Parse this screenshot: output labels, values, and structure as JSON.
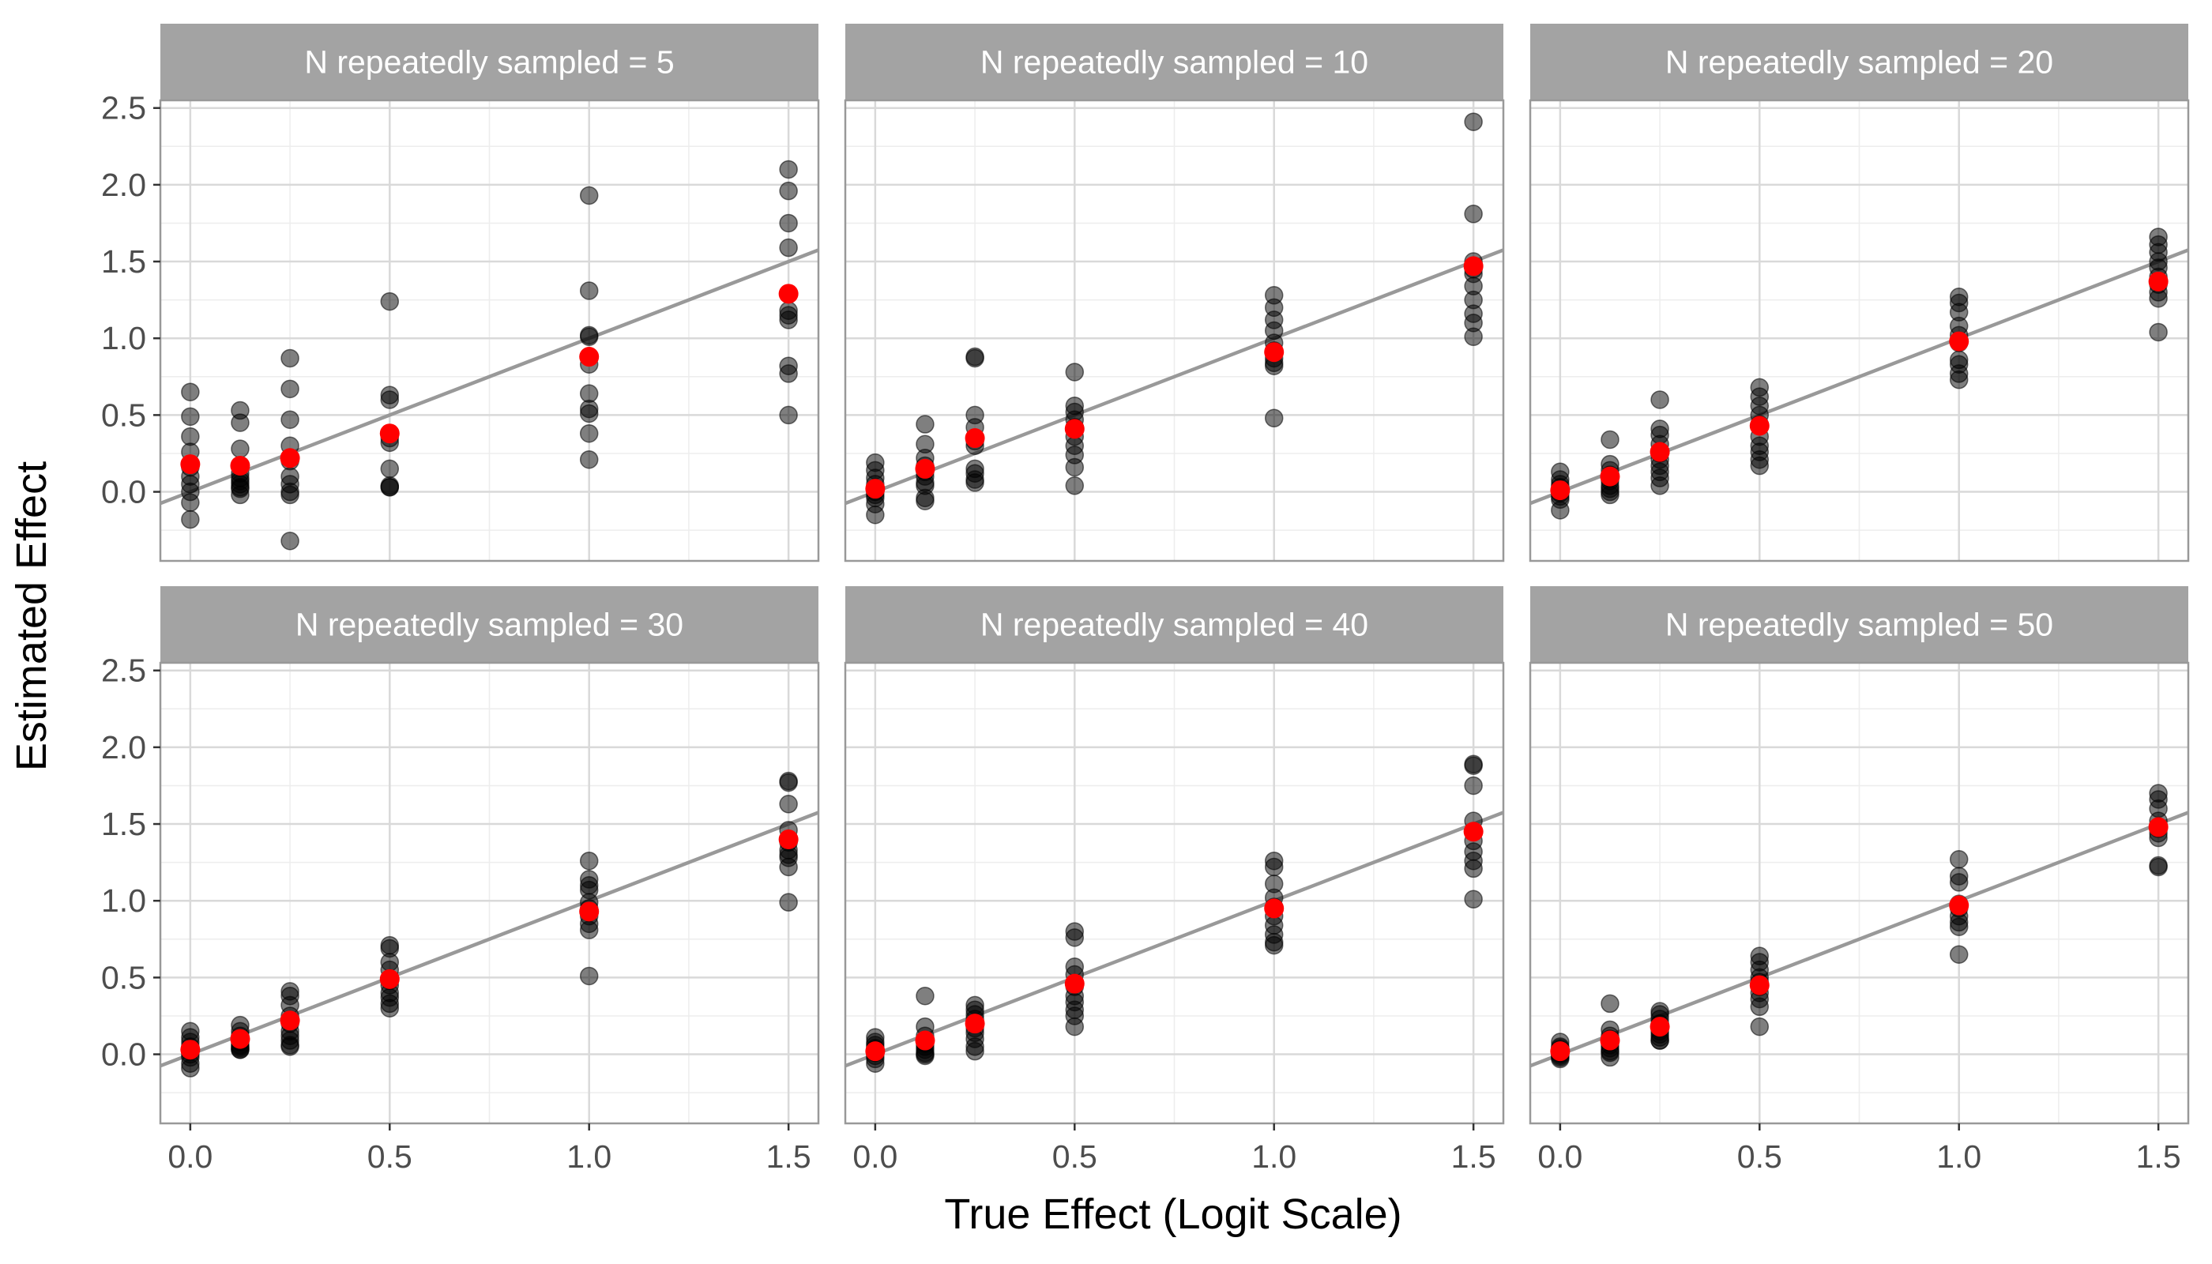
{
  "figure": {
    "xlabel": "True Effect (Logit Scale)",
    "ylabel": "Estimated Effect"
  },
  "colors": {
    "strip_fill": "#a3a3a3",
    "panel_border": "#999999",
    "grid_major": "#d9d9d9",
    "grid_minor": "#ededed",
    "point": "#000000",
    "mean_point": "#ff0000",
    "reference_line": "#999999"
  },
  "chart_data": {
    "type": "scatter",
    "facet_label_prefix": "N repeatedly sampled = ",
    "xlim": [
      -0.075,
      1.575
    ],
    "ylim": [
      -0.45,
      2.55
    ],
    "x_ticks": [
      0.0,
      0.5,
      1.0,
      1.5
    ],
    "x_tick_labels": [
      "0.0",
      "0.5",
      "1.0",
      "1.5"
    ],
    "y_ticks": [
      0.0,
      0.5,
      1.0,
      1.5,
      2.0,
      2.5
    ],
    "y_tick_labels": [
      "0.0",
      "0.5",
      "1.0",
      "1.5",
      "2.0",
      "2.5"
    ],
    "grid": true,
    "reference_line": {
      "slope": 1,
      "intercept": 0
    },
    "x_levels": [
      0.0,
      0.125,
      0.25,
      0.5,
      1.0,
      1.5
    ],
    "panels": [
      {
        "label": "5",
        "estimates": [
          [
            0.65,
            0.49,
            0.36,
            0.26,
            0.16,
            0.1,
            0.05,
            0.0,
            -0.07,
            -0.18
          ],
          [
            0.53,
            0.45,
            0.28,
            0.12,
            0.09,
            0.07,
            0.05,
            0.03,
            0.02,
            -0.02
          ],
          [
            0.87,
            0.67,
            0.47,
            0.3,
            0.2,
            0.1,
            0.05,
            0.0,
            -0.02,
            -0.32
          ],
          [
            1.24,
            0.63,
            0.6,
            0.38,
            0.35,
            0.32,
            0.15,
            0.04,
            0.03,
            0.03
          ],
          [
            1.93,
            1.31,
            1.02,
            1.01,
            0.83,
            0.64,
            0.54,
            0.51,
            0.38,
            0.21
          ],
          [
            2.1,
            1.96,
            1.75,
            1.59,
            1.18,
            1.15,
            1.12,
            0.82,
            0.77,
            0.5
          ]
        ],
        "means": [
          0.18,
          0.17,
          0.22,
          0.38,
          0.88,
          1.29
        ]
      },
      {
        "label": "10",
        "estimates": [
          [
            0.19,
            0.14,
            0.09,
            0.05,
            0.02,
            0.0,
            -0.02,
            -0.04,
            -0.08,
            -0.15
          ],
          [
            0.44,
            0.31,
            0.22,
            0.17,
            0.13,
            0.1,
            0.06,
            0.04,
            -0.04,
            -0.06
          ],
          [
            0.88,
            0.87,
            0.5,
            0.42,
            0.33,
            0.3,
            0.15,
            0.12,
            0.08,
            0.06
          ],
          [
            0.78,
            0.56,
            0.52,
            0.47,
            0.42,
            0.36,
            0.3,
            0.24,
            0.16,
            0.04
          ],
          [
            1.28,
            1.2,
            1.12,
            1.05,
            0.97,
            0.92,
            0.87,
            0.84,
            0.82,
            0.48
          ],
          [
            2.41,
            1.81,
            1.5,
            1.45,
            1.42,
            1.34,
            1.25,
            1.16,
            1.1,
            1.01
          ]
        ],
        "means": [
          0.02,
          0.15,
          0.35,
          0.41,
          0.91,
          1.47
        ]
      },
      {
        "label": "20",
        "estimates": [
          [
            0.13,
            0.08,
            0.05,
            0.03,
            0.01,
            0.0,
            -0.01,
            -0.03,
            -0.05,
            -0.12
          ],
          [
            0.34,
            0.18,
            0.14,
            0.11,
            0.09,
            0.07,
            0.04,
            0.02,
            0.0,
            -0.02
          ],
          [
            0.6,
            0.41,
            0.37,
            0.31,
            0.25,
            0.21,
            0.17,
            0.13,
            0.09,
            0.04
          ],
          [
            0.68,
            0.62,
            0.56,
            0.5,
            0.44,
            0.36,
            0.3,
            0.26,
            0.21,
            0.17
          ],
          [
            1.27,
            1.23,
            1.17,
            1.08,
            1.02,
            0.97,
            0.86,
            0.83,
            0.77,
            0.73
          ],
          [
            1.66,
            1.61,
            1.56,
            1.5,
            1.46,
            1.4,
            1.35,
            1.3,
            1.26,
            1.04
          ]
        ],
        "means": [
          0.01,
          0.1,
          0.26,
          0.43,
          0.98,
          1.37
        ]
      },
      {
        "label": "30",
        "estimates": [
          [
            0.15,
            0.11,
            0.08,
            0.05,
            0.03,
            0.02,
            0.0,
            -0.02,
            -0.06,
            -0.09
          ],
          [
            0.19,
            0.15,
            0.12,
            0.1,
            0.08,
            0.06,
            0.05,
            0.04,
            0.03,
            0.03
          ],
          [
            0.41,
            0.38,
            0.32,
            0.25,
            0.2,
            0.15,
            0.12,
            0.09,
            0.06,
            0.05
          ],
          [
            0.71,
            0.69,
            0.6,
            0.55,
            0.48,
            0.45,
            0.4,
            0.37,
            0.33,
            0.3
          ],
          [
            1.26,
            1.14,
            1.1,
            1.07,
            0.99,
            0.95,
            0.9,
            0.85,
            0.81,
            0.51
          ],
          [
            1.78,
            1.77,
            1.63,
            1.46,
            1.38,
            1.33,
            1.3,
            1.28,
            1.22,
            0.99
          ]
        ],
        "means": [
          0.03,
          0.1,
          0.22,
          0.49,
          0.93,
          1.4
        ]
      },
      {
        "label": "40",
        "estimates": [
          [
            0.11,
            0.08,
            0.06,
            0.04,
            0.03,
            0.02,
            0.01,
            -0.01,
            -0.03,
            -0.06
          ],
          [
            0.38,
            0.18,
            0.12,
            0.09,
            0.07,
            0.05,
            0.03,
            0.01,
            0.0,
            -0.01
          ],
          [
            0.32,
            0.29,
            0.26,
            0.23,
            0.2,
            0.17,
            0.14,
            0.1,
            0.05,
            0.02
          ],
          [
            0.8,
            0.76,
            0.57,
            0.52,
            0.44,
            0.38,
            0.34,
            0.29,
            0.25,
            0.18
          ],
          [
            1.26,
            1.22,
            1.11,
            1.02,
            0.96,
            0.9,
            0.84,
            0.78,
            0.73,
            0.71
          ],
          [
            1.89,
            1.88,
            1.75,
            1.52,
            1.45,
            1.39,
            1.32,
            1.26,
            1.21,
            1.01
          ]
        ],
        "means": [
          0.02,
          0.09,
          0.2,
          0.46,
          0.95,
          1.45
        ]
      },
      {
        "label": "50",
        "estimates": [
          [
            0.08,
            0.05,
            0.04,
            0.03,
            0.02,
            0.01,
            0.0,
            -0.01,
            -0.02,
            -0.03
          ],
          [
            0.33,
            0.16,
            0.12,
            0.1,
            0.08,
            0.06,
            0.04,
            0.02,
            0.01,
            -0.02
          ],
          [
            0.28,
            0.26,
            0.23,
            0.2,
            0.18,
            0.15,
            0.13,
            0.11,
            0.09,
            0.09
          ],
          [
            0.64,
            0.6,
            0.55,
            0.5,
            0.47,
            0.44,
            0.4,
            0.36,
            0.31,
            0.18
          ],
          [
            1.27,
            1.16,
            1.12,
            0.98,
            0.95,
            0.9,
            0.86,
            0.83,
            0.65,
            0.97
          ],
          [
            1.7,
            1.66,
            1.6,
            1.52,
            1.47,
            1.44,
            1.41,
            1.23,
            1.22,
            1.48
          ]
        ],
        "means": [
          0.02,
          0.09,
          0.18,
          0.45,
          0.97,
          1.48
        ]
      }
    ]
  }
}
